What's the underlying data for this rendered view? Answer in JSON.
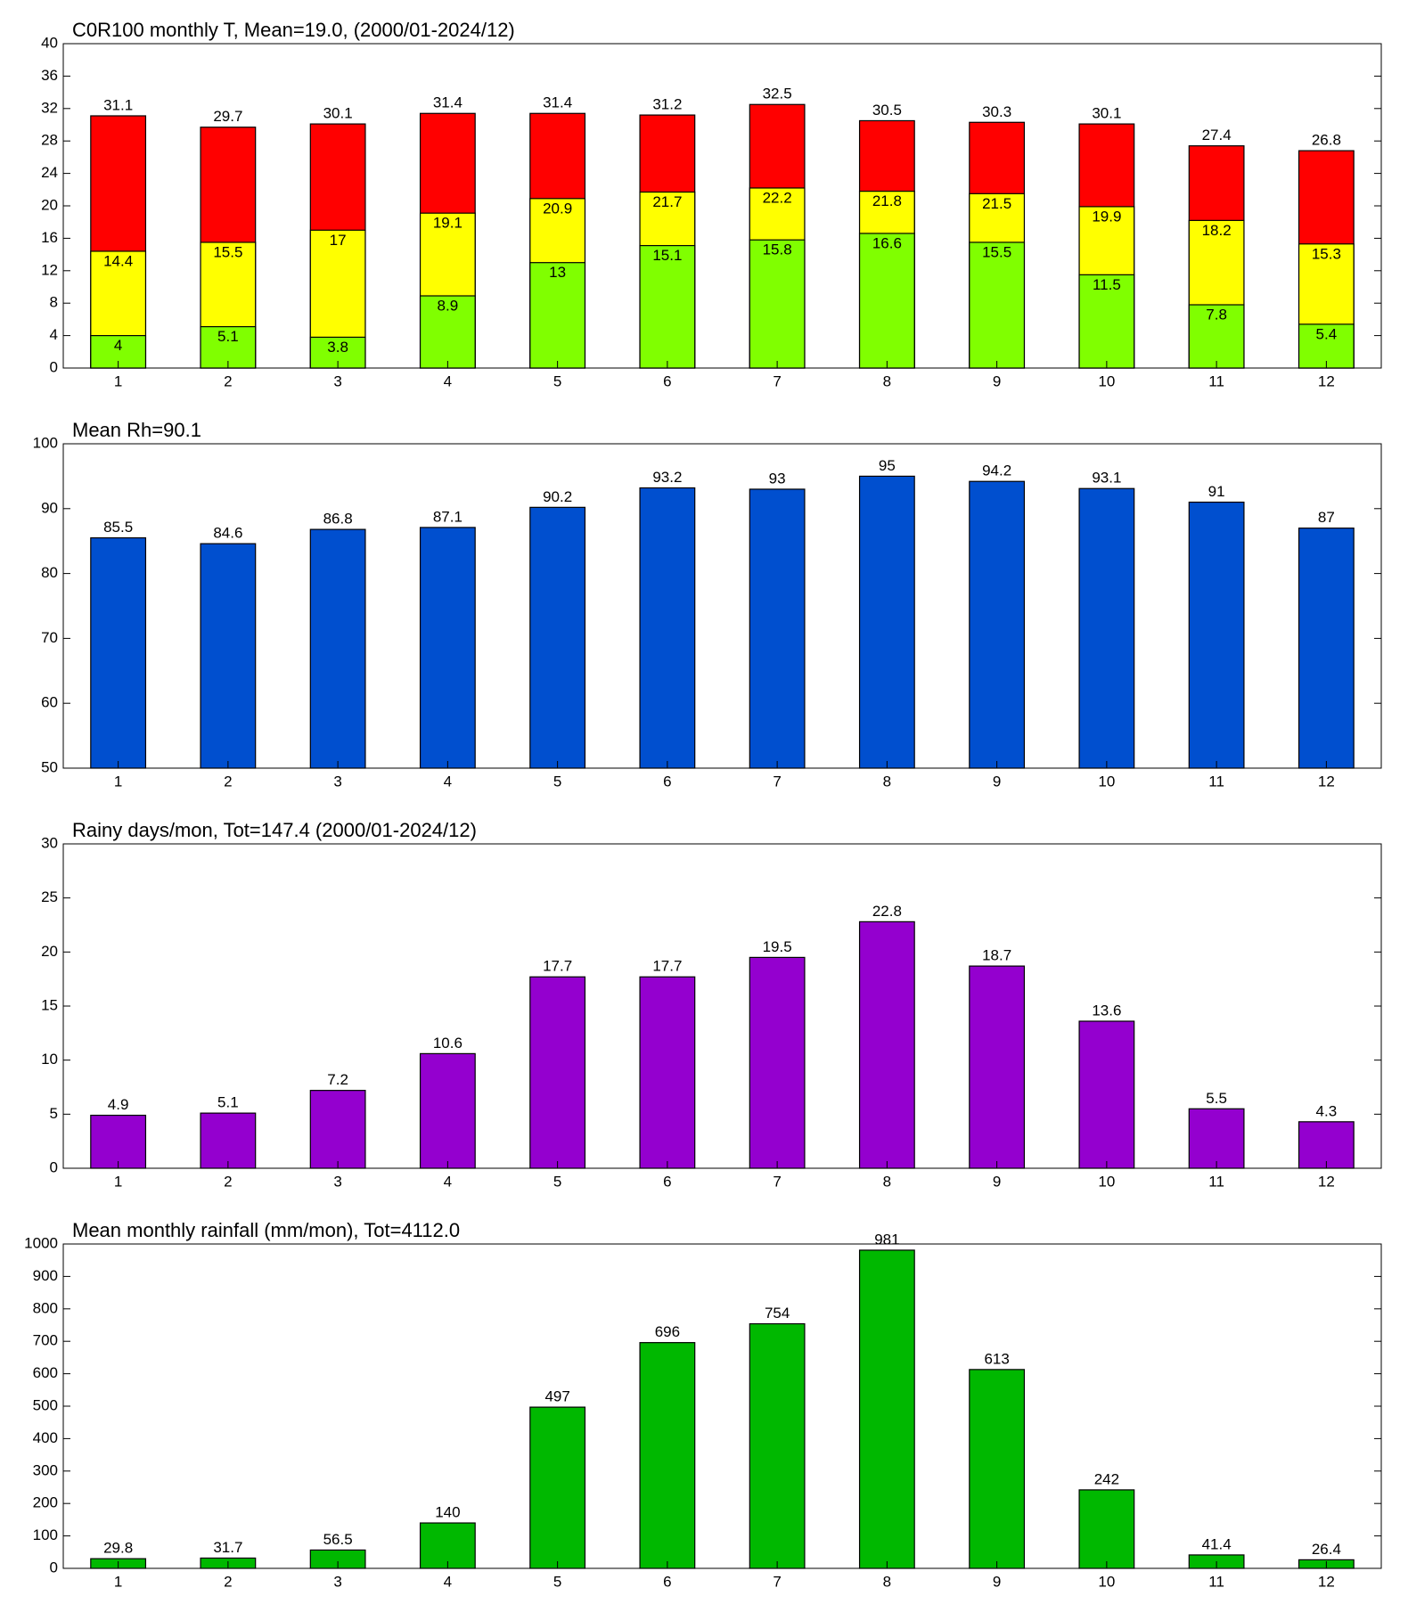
{
  "chart_data": [
    {
      "type": "bar",
      "title": "C0R100 monthly T, Mean=19.0, (2000/01-2024/12)",
      "categories": [
        "1",
        "2",
        "3",
        "4",
        "5",
        "6",
        "7",
        "8",
        "9",
        "10",
        "11",
        "12"
      ],
      "series": [
        {
          "color": "#80ff00",
          "values": [
            4,
            5.1,
            3.8,
            8.9,
            13,
            15.1,
            15.8,
            16.6,
            15.5,
            11.5,
            7.8,
            5.4
          ]
        },
        {
          "color": "#ffff00",
          "values": [
            14.4,
            15.5,
            17,
            19.1,
            20.9,
            21.7,
            22.2,
            21.8,
            21.5,
            19.9,
            18.2,
            15.3
          ]
        },
        {
          "color": "#ff0000",
          "values": [
            31.1,
            29.7,
            30.1,
            31.4,
            31.4,
            31.2,
            32.5,
            30.5,
            30.3,
            30.1,
            27.4,
            26.8
          ]
        }
      ],
      "ylim": [
        0,
        40
      ],
      "yticks": [
        0,
        4,
        8,
        12,
        16,
        20,
        24,
        28,
        32,
        36,
        40
      ]
    },
    {
      "type": "bar",
      "title": "Mean Rh=90.1",
      "categories": [
        "1",
        "2",
        "3",
        "4",
        "5",
        "6",
        "7",
        "8",
        "9",
        "10",
        "11",
        "12"
      ],
      "series": [
        {
          "color": "#004fcf",
          "values": [
            85.5,
            84.6,
            86.8,
            87.1,
            90.2,
            93.2,
            93,
            95,
            94.2,
            93.1,
            91,
            87
          ]
        }
      ],
      "ylim": [
        50,
        100
      ],
      "yticks": [
        50,
        60,
        70,
        80,
        90,
        100
      ]
    },
    {
      "type": "bar",
      "title": "Rainy days/mon, Tot=147.4 (2000/01-2024/12)",
      "categories": [
        "1",
        "2",
        "3",
        "4",
        "5",
        "6",
        "7",
        "8",
        "9",
        "10",
        "11",
        "12"
      ],
      "series": [
        {
          "color": "#9400cf",
          "values": [
            4.9,
            5.1,
            7.2,
            10.6,
            17.7,
            17.7,
            19.5,
            22.8,
            18.7,
            13.6,
            5.5,
            4.3
          ]
        }
      ],
      "ylim": [
        0,
        30
      ],
      "yticks": [
        0,
        5,
        10,
        15,
        20,
        25,
        30
      ]
    },
    {
      "type": "bar",
      "title": "Mean monthly rainfall (mm/mon), Tot=4112.0",
      "categories": [
        "1",
        "2",
        "3",
        "4",
        "5",
        "6",
        "7",
        "8",
        "9",
        "10",
        "11",
        "12"
      ],
      "series": [
        {
          "color": "#00b800",
          "values": [
            29.8,
            31.7,
            56.5,
            140,
            497,
            696,
            754,
            981,
            613,
            242,
            41.4,
            26.4
          ]
        }
      ],
      "ylim": [
        0,
        1000
      ],
      "yticks": [
        0,
        100,
        200,
        300,
        400,
        500,
        600,
        700,
        800,
        900,
        1000
      ]
    }
  ]
}
